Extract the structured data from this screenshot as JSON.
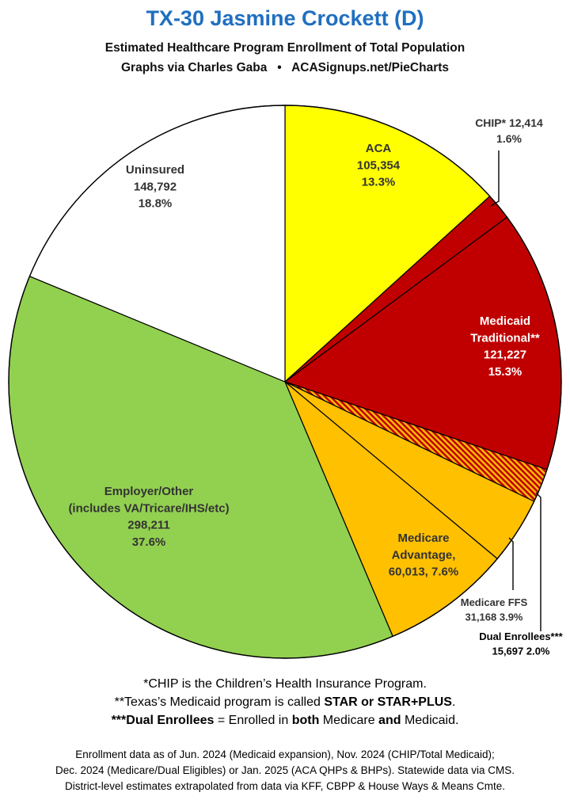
{
  "header": {
    "title": "TX-30 Jasmine Crockett (D)",
    "subtitle": "Estimated Healthcare Program Enrollment of Total Population",
    "credit": "Graphs via Charles Gaba",
    "bullet": "•",
    "site": "ACASignups.net/PieCharts"
  },
  "chart_data": {
    "type": "pie",
    "title": "TX-30 Jasmine Crockett (D)",
    "start": "12 o'clock",
    "direction": "clockwise",
    "slices": [
      {
        "name": "ACA",
        "value": 105354,
        "percent": 13.3,
        "color": "#ffff00",
        "pattern": "none",
        "label_lines": [
          "ACA",
          "105,354",
          "13.3%"
        ],
        "label_color": "#333333"
      },
      {
        "name": "CHIP*",
        "value": 12414,
        "percent": 1.6,
        "color": "#c00000",
        "pattern": "none",
        "label_lines": [
          "CHIP* 12,414",
          "1.6%"
        ],
        "label_color": "#333333"
      },
      {
        "name": "Medicaid Traditional**",
        "value": 121227,
        "percent": 15.3,
        "color": "#c00000",
        "pattern": "none",
        "label_lines": [
          "Medicaid",
          "Traditional**",
          "121,227",
          "15.3%"
        ],
        "label_color": "#ffffff"
      },
      {
        "name": "Dual Enrollees***",
        "value": 15697,
        "percent": 2.0,
        "color": "#c00000",
        "pattern": "hatch",
        "label_lines": [
          "Dual Enrollees***",
          "15,697 2.0%"
        ],
        "label_color": "#000000"
      },
      {
        "name": "Medicare FFS",
        "value": 31168,
        "percent": 3.9,
        "color": "#ffc000",
        "pattern": "none",
        "label_lines": [
          "Medicare FFS",
          "31,168 3.9%"
        ],
        "label_color": "#333333"
      },
      {
        "name": "Medicare Advantage",
        "value": 60013,
        "percent": 7.6,
        "color": "#ffc000",
        "pattern": "none",
        "label_lines": [
          "Medicare",
          "Advantage,",
          "60,013, 7.6%"
        ],
        "label_color": "#333333"
      },
      {
        "name": "Employer/Other (includes VA/Tricare/IHS/etc)",
        "value": 298211,
        "percent": 37.6,
        "color": "#92d050",
        "pattern": "none",
        "label_lines": [
          "Employer/Other",
          "(includes VA/Tricare/IHS/etc)",
          "298,211",
          "37.6%"
        ],
        "label_color": "#333333"
      },
      {
        "name": "Uninsured",
        "value": 148792,
        "percent": 18.8,
        "color": "#ffffff",
        "pattern": "none",
        "label_lines": [
          "Uninsured",
          "148,792",
          "18.8%"
        ],
        "label_color": "#333333"
      }
    ]
  },
  "footnotes": {
    "chip": "*CHIP is the Children’s Health Insurance Program.",
    "medicaid_pre": "**Texas’s Medicaid program is called ",
    "medicaid_bold": "STAR or STAR+PLUS",
    "medicaid_post": ".",
    "dual_bold": "***Dual Enrollees",
    "dual_a": " = Enrolled in ",
    "dual_both": "both",
    "dual_b": " Medicare ",
    "dual_and": "and",
    "dual_c": " Medicaid."
  },
  "source": {
    "line1": "Enrollment data as of Jun. 2024 (Medicaid expansion), Nov. 2024 (CHIP/Total Medicaid);",
    "line2": "Dec. 2024 (Medicare/Dual Eligibles) or Jan. 2025 (ACA QHPs & BHPs). Statewide data via CMS.",
    "line3": "District-level estimates extrapolated from data via KFF, CBPP & House Ways & Means Cmte."
  }
}
